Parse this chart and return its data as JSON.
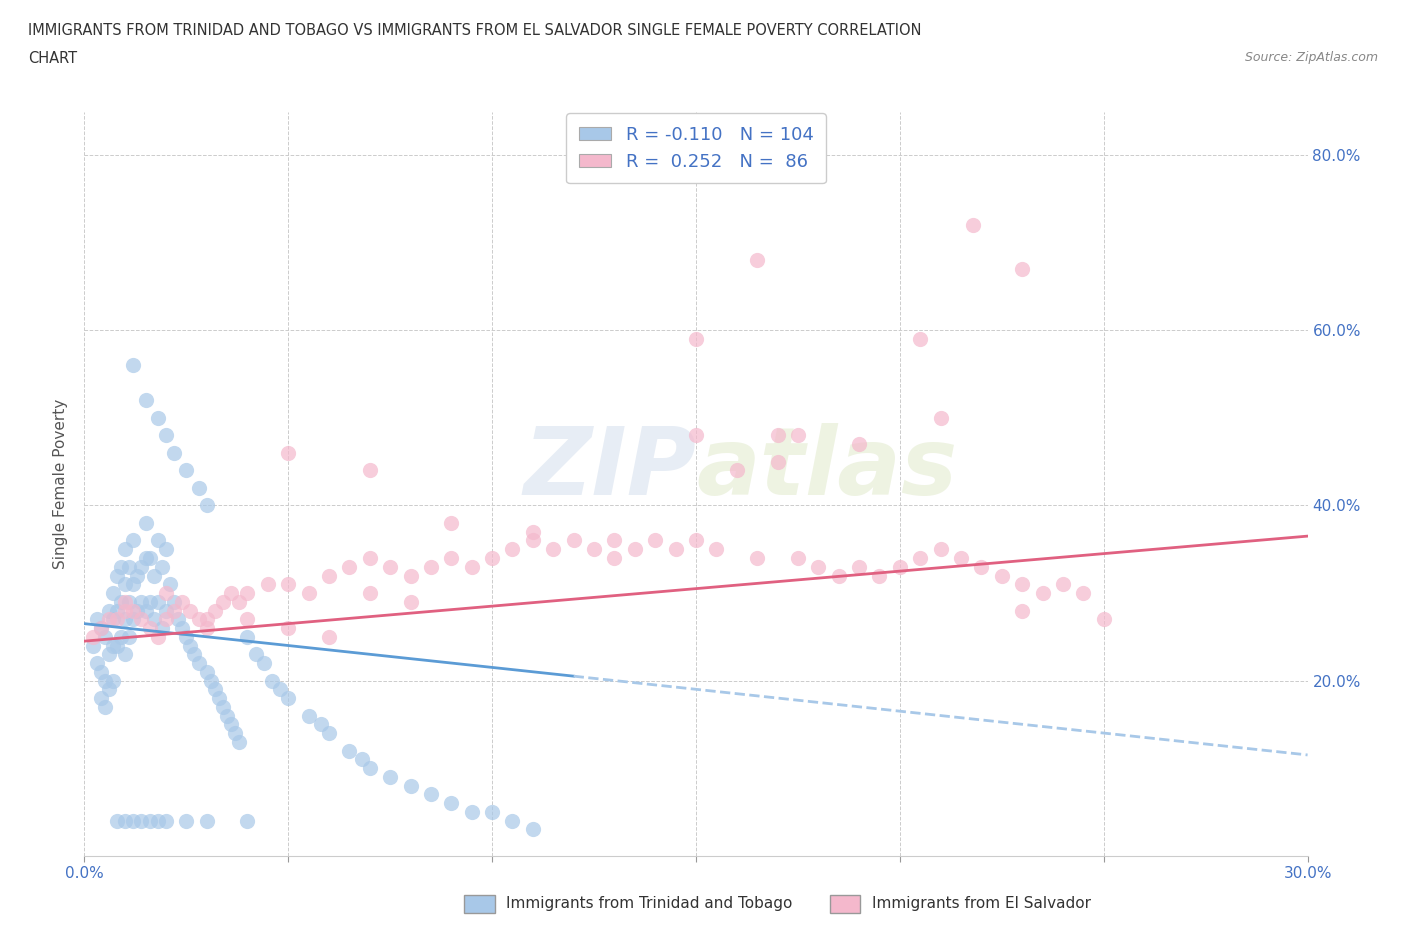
{
  "title_line1": "IMMIGRANTS FROM TRINIDAD AND TOBAGO VS IMMIGRANTS FROM EL SALVADOR SINGLE FEMALE POVERTY CORRELATION",
  "title_line2": "CHART",
  "source": "Source: ZipAtlas.com",
  "ylabel": "Single Female Poverty",
  "watermark": "ZIPAtlas",
  "R_blue": -0.11,
  "N_blue": 104,
  "R_pink": 0.252,
  "N_pink": 86,
  "color_blue": "#a8c8e8",
  "color_pink": "#f4b8cc",
  "line_blue_solid": "#5b9bd5",
  "line_pink_solid": "#e06080",
  "line_blue_dash": "#a8c8e8",
  "legend_label_blue": "Immigrants from Trinidad and Tobago",
  "legend_label_pink": "Immigrants from El Salvador",
  "xlim": [
    0.0,
    0.3
  ],
  "ylim": [
    0.0,
    0.85
  ],
  "blue_x": [
    0.002,
    0.003,
    0.003,
    0.004,
    0.004,
    0.004,
    0.005,
    0.005,
    0.005,
    0.006,
    0.006,
    0.006,
    0.007,
    0.007,
    0.007,
    0.007,
    0.008,
    0.008,
    0.008,
    0.009,
    0.009,
    0.009,
    0.01,
    0.01,
    0.01,
    0.01,
    0.011,
    0.011,
    0.011,
    0.012,
    0.012,
    0.012,
    0.013,
    0.013,
    0.014,
    0.014,
    0.015,
    0.015,
    0.015,
    0.016,
    0.016,
    0.017,
    0.017,
    0.018,
    0.018,
    0.019,
    0.019,
    0.02,
    0.02,
    0.021,
    0.022,
    0.023,
    0.024,
    0.025,
    0.026,
    0.027,
    0.028,
    0.03,
    0.031,
    0.032,
    0.033,
    0.034,
    0.035,
    0.036,
    0.037,
    0.038,
    0.04,
    0.042,
    0.044,
    0.046,
    0.048,
    0.05,
    0.055,
    0.058,
    0.06,
    0.065,
    0.068,
    0.07,
    0.075,
    0.08,
    0.085,
    0.09,
    0.095,
    0.1,
    0.105,
    0.11,
    0.012,
    0.015,
    0.018,
    0.02,
    0.022,
    0.025,
    0.028,
    0.03,
    0.008,
    0.01,
    0.012,
    0.014,
    0.016,
    0.018,
    0.02,
    0.025,
    0.03,
    0.04
  ],
  "blue_y": [
    0.24,
    0.27,
    0.22,
    0.26,
    0.21,
    0.18,
    0.25,
    0.2,
    0.17,
    0.28,
    0.23,
    0.19,
    0.3,
    0.27,
    0.24,
    0.2,
    0.32,
    0.28,
    0.24,
    0.33,
    0.29,
    0.25,
    0.35,
    0.31,
    0.27,
    0.23,
    0.33,
    0.29,
    0.25,
    0.36,
    0.31,
    0.27,
    0.32,
    0.28,
    0.33,
    0.29,
    0.38,
    0.34,
    0.28,
    0.34,
    0.29,
    0.32,
    0.27,
    0.36,
    0.29,
    0.33,
    0.26,
    0.35,
    0.28,
    0.31,
    0.29,
    0.27,
    0.26,
    0.25,
    0.24,
    0.23,
    0.22,
    0.21,
    0.2,
    0.19,
    0.18,
    0.17,
    0.16,
    0.15,
    0.14,
    0.13,
    0.25,
    0.23,
    0.22,
    0.2,
    0.19,
    0.18,
    0.16,
    0.15,
    0.14,
    0.12,
    0.11,
    0.1,
    0.09,
    0.08,
    0.07,
    0.06,
    0.05,
    0.05,
    0.04,
    0.03,
    0.56,
    0.52,
    0.5,
    0.48,
    0.46,
    0.44,
    0.42,
    0.4,
    0.04,
    0.04,
    0.04,
    0.04,
    0.04,
    0.04,
    0.04,
    0.04,
    0.04,
    0.04
  ],
  "pink_x": [
    0.002,
    0.004,
    0.006,
    0.008,
    0.01,
    0.012,
    0.014,
    0.016,
    0.018,
    0.02,
    0.022,
    0.024,
    0.026,
    0.028,
    0.03,
    0.032,
    0.034,
    0.036,
    0.038,
    0.04,
    0.045,
    0.05,
    0.055,
    0.06,
    0.065,
    0.07,
    0.075,
    0.08,
    0.085,
    0.09,
    0.095,
    0.1,
    0.105,
    0.11,
    0.115,
    0.12,
    0.125,
    0.13,
    0.135,
    0.14,
    0.145,
    0.15,
    0.155,
    0.16,
    0.165,
    0.17,
    0.175,
    0.18,
    0.185,
    0.19,
    0.195,
    0.2,
    0.205,
    0.21,
    0.215,
    0.22,
    0.225,
    0.23,
    0.235,
    0.24,
    0.245,
    0.05,
    0.07,
    0.09,
    0.11,
    0.13,
    0.15,
    0.17,
    0.19,
    0.21,
    0.23,
    0.25,
    0.01,
    0.02,
    0.03,
    0.04,
    0.05,
    0.06,
    0.07,
    0.08,
    0.218,
    0.23,
    0.205,
    0.175,
    0.165,
    0.15
  ],
  "pink_y": [
    0.25,
    0.26,
    0.27,
    0.27,
    0.28,
    0.28,
    0.27,
    0.26,
    0.25,
    0.27,
    0.28,
    0.29,
    0.28,
    0.27,
    0.27,
    0.28,
    0.29,
    0.3,
    0.29,
    0.3,
    0.31,
    0.31,
    0.3,
    0.32,
    0.33,
    0.34,
    0.33,
    0.32,
    0.33,
    0.34,
    0.33,
    0.34,
    0.35,
    0.36,
    0.35,
    0.36,
    0.35,
    0.34,
    0.35,
    0.36,
    0.35,
    0.36,
    0.35,
    0.44,
    0.34,
    0.45,
    0.34,
    0.33,
    0.32,
    0.33,
    0.32,
    0.33,
    0.34,
    0.35,
    0.34,
    0.33,
    0.32,
    0.31,
    0.3,
    0.31,
    0.3,
    0.46,
    0.44,
    0.38,
    0.37,
    0.36,
    0.48,
    0.48,
    0.47,
    0.5,
    0.28,
    0.27,
    0.29,
    0.3,
    0.26,
    0.27,
    0.26,
    0.25,
    0.3,
    0.29,
    0.72,
    0.67,
    0.59,
    0.48,
    0.68,
    0.59
  ]
}
